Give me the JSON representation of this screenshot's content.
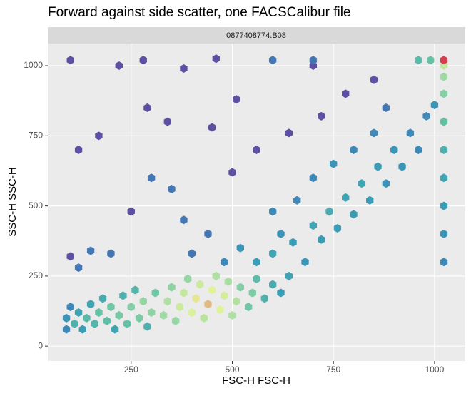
{
  "chart_data": {
    "type": "hexbin",
    "title": "Forward against side scatter, one FACSCalibur file",
    "strip_label": "0877408774.B08",
    "x_label": "FSC-H FSC-H",
    "y_label": "SSC-H SSC-H",
    "xlim": [
      44,
      1076
    ],
    "ylim": [
      -53,
      1079
    ],
    "xticks": [
      250,
      500,
      750,
      1000
    ],
    "yticks": [
      0,
      250,
      500,
      750,
      1000
    ],
    "grid": true,
    "palette": [
      "#5e4fa2",
      "#3f7fb8",
      "#3b9fb5",
      "#66c2a5",
      "#abdda4",
      "#e6f598",
      "#d53e4f"
    ],
    "x": [
      90,
      90,
      100,
      110,
      120,
      130,
      140,
      150,
      160,
      170,
      180,
      190,
      200,
      210,
      220,
      230,
      240,
      250,
      260,
      270,
      280,
      290,
      300,
      310,
      330,
      340,
      350,
      360,
      370,
      380,
      390,
      400,
      410,
      420,
      430,
      440,
      450,
      460,
      470,
      480,
      490,
      500,
      510,
      520,
      540,
      550,
      560,
      580,
      600,
      620,
      640,
      560,
      600,
      620,
      650,
      680,
      700,
      720,
      740,
      760,
      780,
      800,
      820,
      840,
      860,
      880,
      900,
      920,
      940,
      960,
      980,
      1000,
      660,
      700,
      750,
      800,
      850,
      880,
      600,
      520,
      480,
      440,
      400,
      380,
      350,
      300,
      250,
      200,
      150,
      120,
      100,
      500,
      560,
      640,
      720,
      780,
      850,
      700,
      1023,
      1023,
      1023,
      1023,
      1023,
      1023,
      1023,
      1023,
      1023,
      1023,
      100,
      280,
      460,
      600,
      700,
      960,
      990,
      120,
      170,
      220,
      380,
      510,
      290,
      340,
      450
    ],
    "y": [
      60,
      100,
      140,
      80,
      120,
      60,
      100,
      150,
      80,
      120,
      170,
      90,
      140,
      60,
      110,
      180,
      80,
      140,
      200,
      100,
      160,
      70,
      120,
      190,
      110,
      160,
      210,
      90,
      140,
      190,
      240,
      120,
      170,
      220,
      100,
      150,
      200,
      250,
      130,
      180,
      230,
      110,
      160,
      210,
      140,
      190,
      240,
      170,
      220,
      190,
      250,
      300,
      330,
      400,
      370,
      300,
      430,
      380,
      480,
      420,
      530,
      470,
      580,
      520,
      640,
      580,
      700,
      640,
      760,
      700,
      820,
      860,
      520,
      600,
      650,
      700,
      760,
      850,
      480,
      350,
      300,
      400,
      330,
      450,
      560,
      600,
      480,
      330,
      340,
      280,
      320,
      620,
      700,
      760,
      820,
      900,
      950,
      1000,
      300,
      400,
      500,
      600,
      700,
      800,
      900,
      960,
      1000,
      1020,
      1020,
      1020,
      1025,
      1020,
      1020,
      1020,
      1020,
      700,
      750,
      1000,
      990,
      880,
      850,
      800,
      780
    ],
    "counts": [
      3,
      4,
      3,
      8,
      6,
      5,
      10,
      6,
      9,
      12,
      7,
      11,
      14,
      6,
      15,
      8,
      12,
      18,
      9,
      16,
      22,
      8,
      20,
      14,
      25,
      30,
      20,
      22,
      45,
      40,
      22,
      55,
      70,
      45,
      35,
      85,
      60,
      30,
      60,
      50,
      28,
      30,
      32,
      18,
      14,
      16,
      10,
      8,
      7,
      5,
      6,
      5,
      6,
      4,
      5,
      4,
      6,
      5,
      7,
      5,
      6,
      5,
      6,
      5,
      5,
      4,
      4,
      4,
      3,
      3,
      3,
      4,
      3,
      3,
      4,
      3,
      3,
      2,
      3,
      4,
      3,
      2,
      2,
      2,
      2,
      2,
      1,
      2,
      2,
      2,
      1,
      1,
      1,
      1,
      1,
      1,
      1,
      1,
      3,
      4,
      5,
      6,
      8,
      12,
      18,
      25,
      40,
      150,
      1,
      1,
      1,
      2,
      2,
      10,
      12,
      1,
      1,
      1,
      1,
      1,
      1,
      1,
      1
    ]
  }
}
